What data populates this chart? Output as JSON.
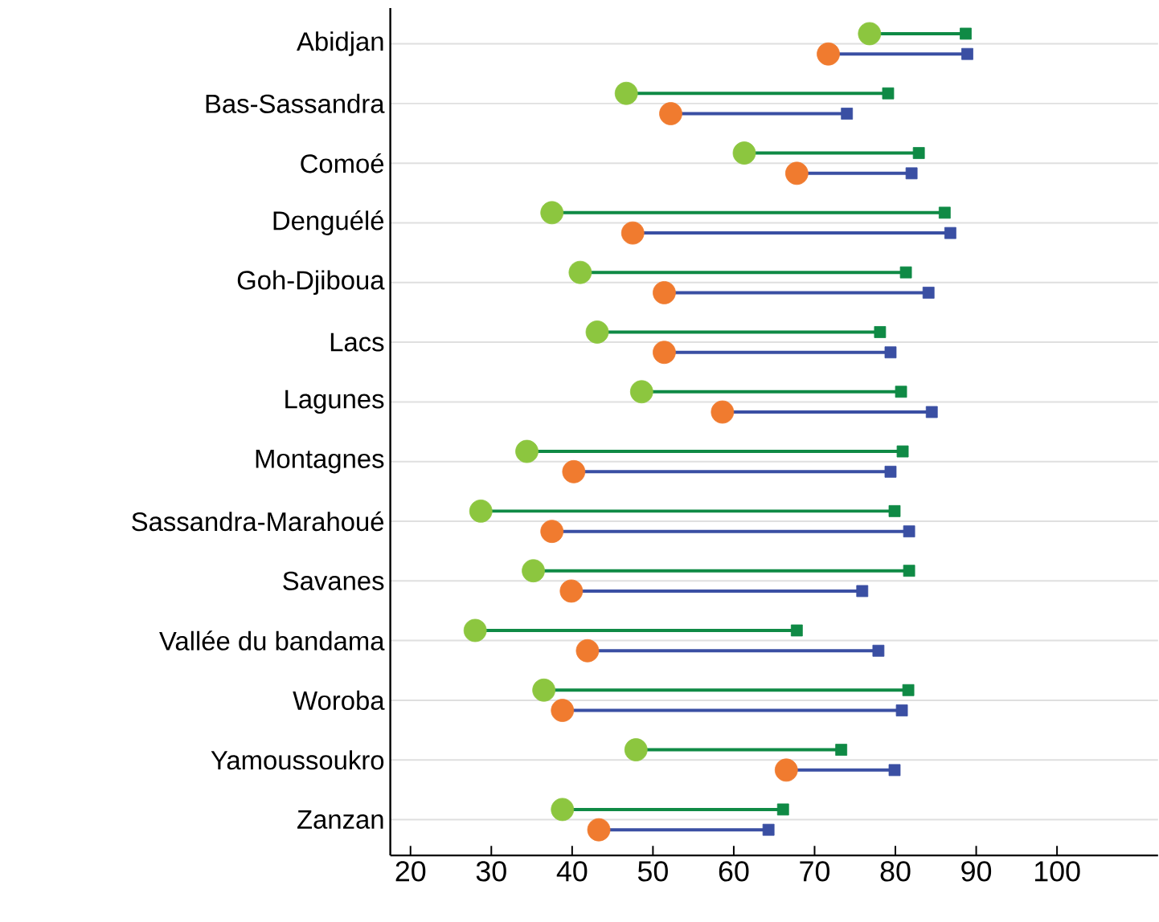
{
  "chart_data": {
    "type": "scatter",
    "orientation": "horizontal",
    "categories": [
      "Abidjan",
      "Bas-Sassandra",
      "Comoé",
      "Denguélé",
      "Goh-Djiboua",
      "Lacs",
      "Lagunes",
      "Montagnes",
      "Sassandra-Marahoué",
      "Savanes",
      "Vallée du bandama",
      "Woroba",
      "Yamoussoukro",
      "Zanzan"
    ],
    "series": [
      {
        "marker": "square",
        "color": "#0f8a45",
        "values": [
          88.7,
          79.1,
          82.9,
          86.1,
          81.3,
          78.1,
          80.7,
          80.9,
          79.9,
          81.7,
          67.8,
          81.6,
          73.3,
          66.1
        ]
      },
      {
        "marker": "circle",
        "color": "#8cc63f",
        "values": [
          76.8,
          46.7,
          61.3,
          37.5,
          41.0,
          43.1,
          48.6,
          34.4,
          28.7,
          35.2,
          28.0,
          36.5,
          47.9,
          38.8
        ]
      },
      {
        "marker": "square",
        "color": "#3a4fa3",
        "values": [
          88.9,
          74.0,
          82.0,
          86.8,
          84.1,
          79.4,
          84.5,
          79.4,
          81.7,
          75.9,
          77.9,
          80.8,
          79.9,
          64.3
        ]
      },
      {
        "marker": "circle",
        "color": "#f07b2f",
        "values": [
          71.7,
          52.2,
          67.8,
          47.5,
          51.4,
          51.4,
          58.6,
          40.2,
          37.5,
          39.9,
          41.9,
          38.8,
          66.5,
          43.3
        ]
      }
    ],
    "xlim": [
      17.5,
      112.5
    ],
    "xticks": [
      20,
      30,
      40,
      50,
      60,
      70,
      80,
      90,
      100
    ],
    "grid": "y"
  }
}
